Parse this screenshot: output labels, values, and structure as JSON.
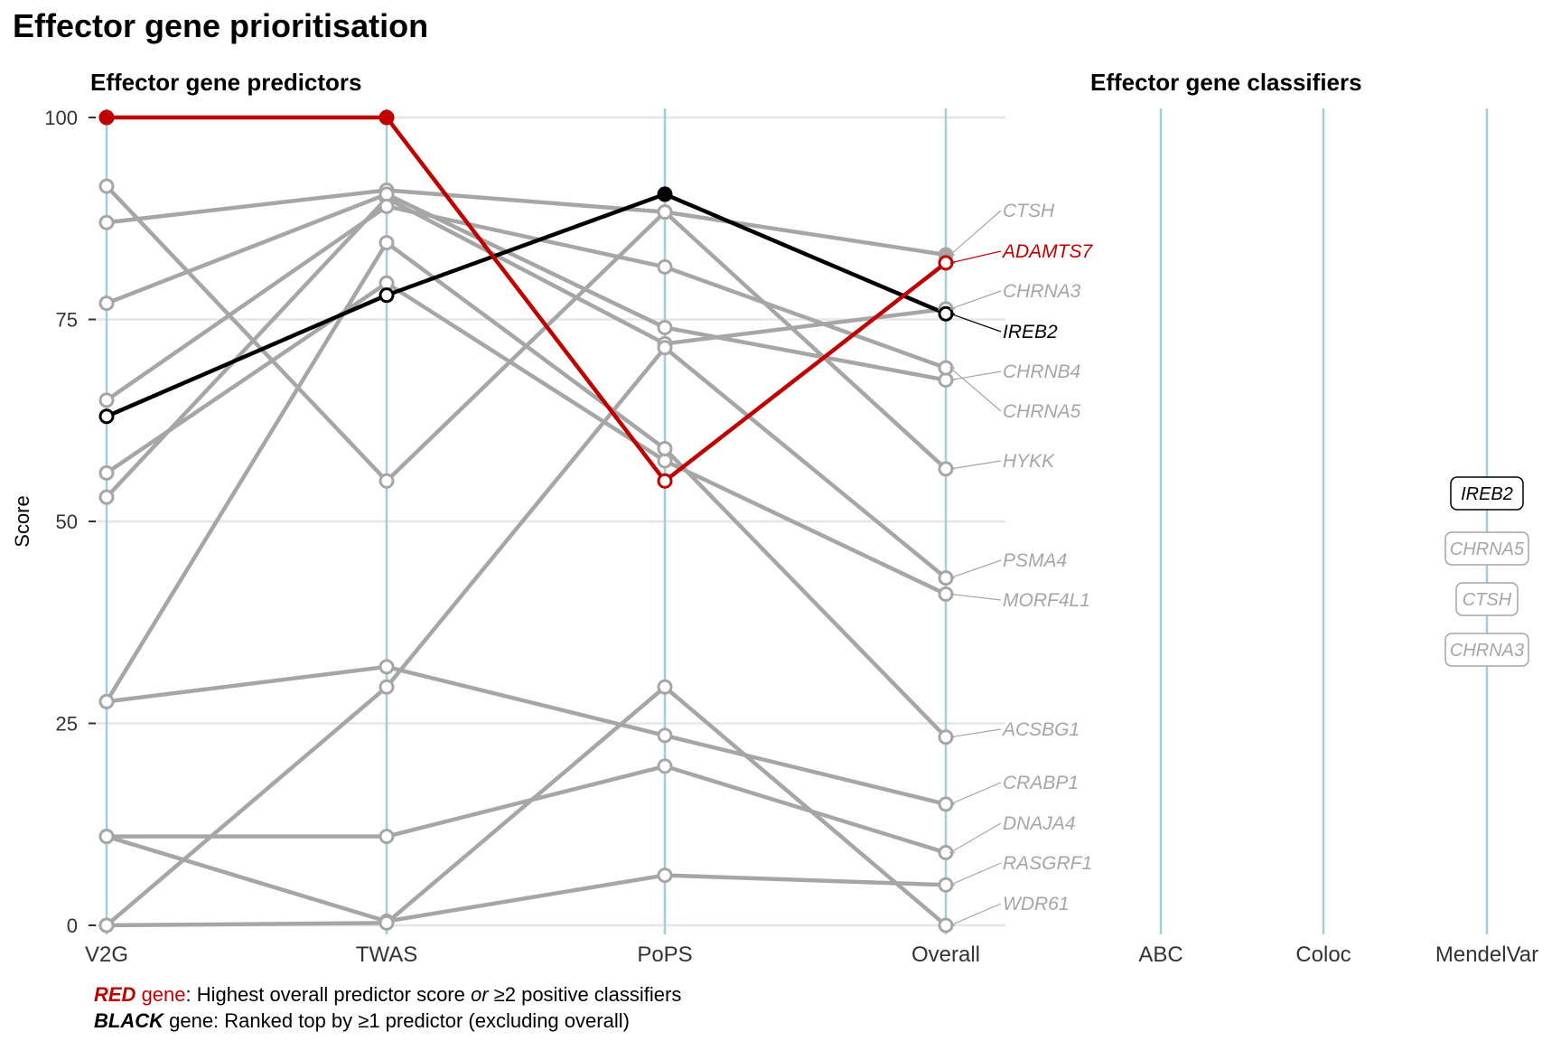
{
  "title": "Effector gene prioritisation",
  "panels": {
    "left_title": "Effector gene predictors",
    "right_title": "Effector gene classifiers"
  },
  "colors": {
    "red": "#c00000",
    "black": "#000000",
    "grey": "#a6a6a6",
    "axis_line": "#9fcfdf",
    "grid": "#e6e6e6"
  },
  "legend_notes": {
    "red_key": "RED",
    "red_word": " gene",
    "red_pre": ": Highest overall predictor score ",
    "red_or": "or",
    "red_post": " ≥2 positive classifiers",
    "black_key": "BLACK",
    "black_rest": " gene: Ranked top by ≥1 predictor (excluding overall)"
  },
  "chart_data": {
    "type": "line",
    "ylabel": "Score",
    "ylim": [
      0,
      100
    ],
    "yticks": [
      0,
      25,
      50,
      75,
      100
    ],
    "predictor_axes": [
      "V2G",
      "TWAS",
      "PoPS",
      "Overall"
    ],
    "classifier_axes": [
      "ABC",
      "Coloc",
      "MendelVar"
    ],
    "series": [
      {
        "name": "CTSH",
        "group": "grey",
        "values": [
          87,
          91,
          88.3,
          83
        ]
      },
      {
        "name": "ADAMTS7",
        "group": "red",
        "values": [
          100,
          100,
          55,
          82
        ]
      },
      {
        "name": "CHRNA3",
        "group": "grey",
        "values": [
          53,
          90,
          72,
          76.3
        ]
      },
      {
        "name": "IREB2",
        "group": "black",
        "values": [
          63,
          78,
          90.5,
          75.7
        ]
      },
      {
        "name": "CHRNB4",
        "group": "grey",
        "values": [
          77,
          90.5,
          74,
          67.5
        ]
      },
      {
        "name": "CHRNA5",
        "group": "grey",
        "values": [
          65,
          89,
          81.5,
          69
        ]
      },
      {
        "name": "HYKK",
        "group": "grey",
        "values": [
          91.5,
          55,
          88.3,
          56.5
        ]
      },
      {
        "name": "PSMA4",
        "group": "grey",
        "values": [
          0,
          29.5,
          71.5,
          43
        ]
      },
      {
        "name": "MORF4L1",
        "group": "grey",
        "values": [
          56,
          79.5,
          57.5,
          41
        ]
      },
      {
        "name": "ACSBG1",
        "group": "grey",
        "values": [
          27.7,
          84.5,
          59,
          23.3
        ]
      },
      {
        "name": "CRABP1",
        "group": "grey",
        "values": [
          27.7,
          32,
          23.5,
          15
        ]
      },
      {
        "name": "DNAJA4",
        "group": "grey",
        "values": [
          11,
          11,
          19.7,
          9
        ]
      },
      {
        "name": "RASGRF1",
        "group": "grey",
        "values": [
          11,
          0.5,
          6.2,
          5
        ]
      },
      {
        "name": "WDR61",
        "group": "grey",
        "values": [
          0,
          0.3,
          29.5,
          0
        ]
      }
    ],
    "overall_labels": [
      {
        "name": "CTSH",
        "group": "grey"
      },
      {
        "name": "ADAMTS7",
        "group": "red"
      },
      {
        "name": "CHRNA3",
        "group": "grey"
      },
      {
        "name": "IREB2",
        "group": "black"
      },
      {
        "name": "CHRNB4",
        "group": "grey"
      },
      {
        "name": "CHRNA5",
        "group": "grey"
      },
      {
        "name": "HYKK",
        "group": "grey"
      },
      {
        "name": "PSMA4",
        "group": "grey"
      },
      {
        "name": "MORF4L1",
        "group": "grey"
      },
      {
        "name": "ACSBG1",
        "group": "grey"
      },
      {
        "name": "CRABP1",
        "group": "grey"
      },
      {
        "name": "DNAJA4",
        "group": "grey"
      },
      {
        "name": "RASGRF1",
        "group": "grey"
      },
      {
        "name": "WDR61",
        "group": "grey"
      }
    ],
    "classifier_hits": {
      "MendelVar": [
        {
          "name": "IREB2",
          "group": "black"
        },
        {
          "name": "CHRNA5",
          "group": "grey"
        },
        {
          "name": "CTSH",
          "group": "grey"
        },
        {
          "name": "CHRNA3",
          "group": "grey"
        }
      ]
    }
  }
}
